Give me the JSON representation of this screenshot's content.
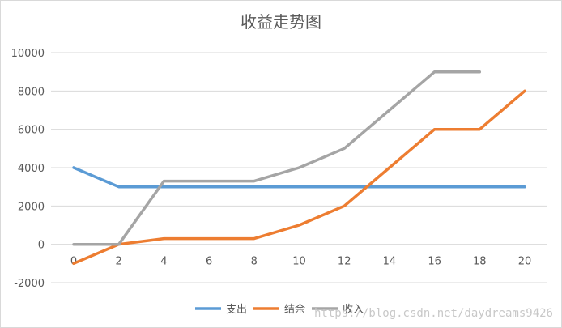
{
  "chart_data": {
    "type": "line",
    "title": "收益走势图",
    "xlabel": "",
    "ylabel": "",
    "x": [
      0,
      2,
      4,
      6,
      8,
      10,
      12,
      14,
      16,
      18,
      20
    ],
    "x_ticks": [
      "0",
      "2",
      "4",
      "6",
      "8",
      "10",
      "12",
      "14",
      "16",
      "18",
      "20"
    ],
    "y_ticks": [
      "10000",
      "8000",
      "6000",
      "4000",
      "2000",
      "0",
      "-2000"
    ],
    "ylim": [
      -2000,
      10000
    ],
    "grid": true,
    "legend_position": "bottom",
    "series": [
      {
        "name": "支出",
        "color": "#5b9bd5",
        "values": [
          4000,
          3000,
          3000,
          3000,
          3000,
          3000,
          3000,
          3000,
          3000,
          3000,
          3000
        ]
      },
      {
        "name": "结余",
        "color": "#ed7d31",
        "values": [
          -1000,
          0,
          300,
          300,
          300,
          1000,
          2000,
          4000,
          6000,
          6000,
          8000
        ]
      },
      {
        "name": "收入",
        "color": "#a5a5a5",
        "values": [
          0,
          0,
          3300,
          3300,
          3300,
          4000,
          5000,
          7000,
          9000,
          9000,
          null
        ]
      }
    ]
  },
  "watermark": "https://blog.csdn.net/daydreams9426"
}
